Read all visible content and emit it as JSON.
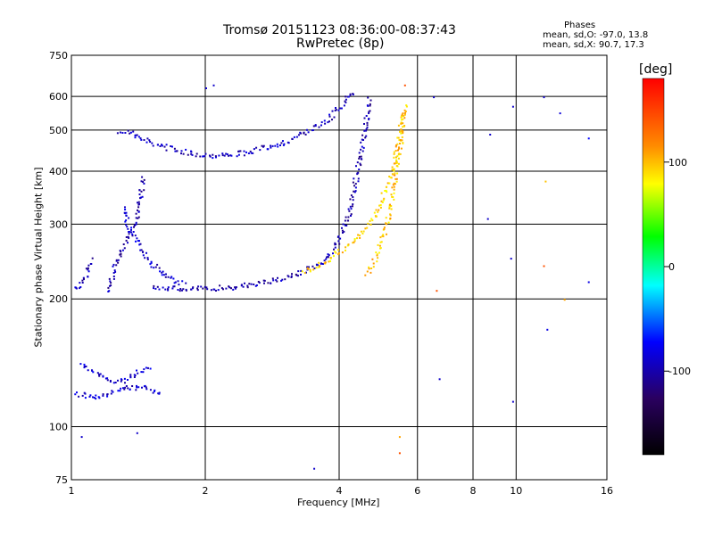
{
  "chart_data": {
    "type": "scatter",
    "title": "Tromsø 20151123 08:36:00-08:37:43",
    "subtitle": "RwPretec (8p)",
    "xlabel": "Frequency [MHz]",
    "ylabel": "Stationary phase Virtual Height [km]",
    "x_scale": "log",
    "y_scale": "log",
    "xlim": [
      1,
      16
    ],
    "ylim": [
      75,
      750
    ],
    "x_ticks": [
      1,
      2,
      4,
      6,
      8,
      10,
      16
    ],
    "y_ticks": [
      75,
      100,
      200,
      300,
      400,
      500,
      600,
      750
    ],
    "grid": true,
    "phase_info": {
      "heading": "Phases",
      "line_o": "mean, sd,O: -97.0, 13.8",
      "line_x": "mean, sd,X:  90.7, 17.3"
    },
    "colorbar": {
      "label": "[deg]",
      "range": [
        -180,
        180
      ],
      "ticks": [
        100,
        0,
        -100
      ],
      "colors": [
        "#ff0000",
        "#ffa500",
        "#ffff00",
        "#00ff00",
        "#00ffff",
        "#0000ff",
        "#2a0060",
        "#000000"
      ]
    },
    "traces": [
      {
        "phase": -105,
        "points": [
          [
            1.28,
            500
          ],
          [
            1.35,
            495
          ],
          [
            1.45,
            475
          ],
          [
            1.6,
            460
          ],
          [
            1.8,
            445
          ],
          [
            2.0,
            438
          ],
          [
            2.2,
            438
          ],
          [
            2.5,
            445
          ],
          [
            2.8,
            460
          ],
          [
            3.1,
            475
          ],
          [
            3.4,
            500
          ],
          [
            3.7,
            525
          ],
          [
            3.95,
            560
          ],
          [
            4.15,
            595
          ],
          [
            4.35,
            625
          ]
        ]
      },
      {
        "phase": -110,
        "points": [
          [
            1.52,
            215
          ],
          [
            1.7,
            212
          ],
          [
            1.9,
            212
          ],
          [
            2.1,
            213
          ],
          [
            2.4,
            215
          ],
          [
            2.7,
            220
          ],
          [
            3.0,
            225
          ],
          [
            3.3,
            232
          ],
          [
            3.6,
            243
          ],
          [
            3.85,
            260
          ],
          [
            4.05,
            285
          ],
          [
            4.2,
            320
          ],
          [
            4.32,
            370
          ],
          [
            4.42,
            420
          ],
          [
            4.52,
            480
          ],
          [
            4.6,
            540
          ],
          [
            4.68,
            600
          ]
        ]
      },
      {
        "phase": 105,
        "points": [
          [
            3.3,
            232
          ],
          [
            3.7,
            245
          ],
          [
            4.05,
            262
          ],
          [
            4.4,
            280
          ],
          [
            4.7,
            305
          ],
          [
            4.95,
            340
          ],
          [
            5.15,
            380
          ],
          [
            5.3,
            420
          ],
          [
            5.42,
            470
          ],
          [
            5.5,
            520
          ],
          [
            5.58,
            560
          ]
        ]
      },
      {
        "phase": 110,
        "points": [
          [
            4.6,
            230
          ],
          [
            4.85,
            255
          ],
          [
            5.05,
            290
          ],
          [
            5.2,
            330
          ],
          [
            5.3,
            380
          ],
          [
            5.4,
            430
          ],
          [
            5.5,
            480
          ],
          [
            5.55,
            540
          ],
          [
            5.6,
            580
          ]
        ]
      },
      {
        "phase": -100,
        "points": [
          [
            1.3,
            330
          ],
          [
            1.35,
            290
          ],
          [
            1.42,
            265
          ],
          [
            1.5,
            245
          ],
          [
            1.6,
            230
          ],
          [
            1.7,
            222
          ],
          [
            1.8,
            218
          ]
        ]
      },
      {
        "phase": -110,
        "points": [
          [
            1.2,
            210
          ],
          [
            1.25,
            240
          ],
          [
            1.3,
            265
          ],
          [
            1.35,
            290
          ],
          [
            1.4,
            310
          ],
          [
            1.42,
            350
          ],
          [
            1.45,
            390
          ]
        ]
      },
      {
        "phase": -100,
        "points": [
          [
            1.02,
            120
          ],
          [
            1.1,
            118
          ],
          [
            1.2,
            120
          ],
          [
            1.3,
            123
          ],
          [
            1.42,
            125
          ],
          [
            1.5,
            122
          ],
          [
            1.6,
            120
          ]
        ]
      },
      {
        "phase": -100,
        "points": [
          [
            1.05,
            140
          ],
          [
            1.12,
            135
          ],
          [
            1.2,
            130
          ],
          [
            1.3,
            128
          ],
          [
            1.4,
            135
          ],
          [
            1.5,
            140
          ]
        ]
      },
      {
        "phase": -110,
        "points": [
          [
            1.02,
            210
          ],
          [
            1.05,
            220
          ],
          [
            1.08,
            230
          ],
          [
            1.1,
            250
          ]
        ]
      }
    ],
    "isolated_points": [
      {
        "x": 1.05,
        "y": 95,
        "phase": -100
      },
      {
        "x": 1.4,
        "y": 97,
        "phase": -100
      },
      {
        "x": 2.0,
        "y": 630,
        "phase": -100
      },
      {
        "x": 2.08,
        "y": 640,
        "phase": -100
      },
      {
        "x": 3.5,
        "y": 80,
        "phase": -100
      },
      {
        "x": 5.6,
        "y": 640,
        "phase": 150
      },
      {
        "x": 6.5,
        "y": 600,
        "phase": -100
      },
      {
        "x": 6.6,
        "y": 210,
        "phase": 150
      },
      {
        "x": 6.7,
        "y": 130,
        "phase": -100
      },
      {
        "x": 8.7,
        "y": 490,
        "phase": -100
      },
      {
        "x": 8.6,
        "y": 310,
        "phase": -100
      },
      {
        "x": 9.7,
        "y": 250,
        "phase": -100
      },
      {
        "x": 9.8,
        "y": 570,
        "phase": -100
      },
      {
        "x": 9.8,
        "y": 115,
        "phase": -100
      },
      {
        "x": 11.5,
        "y": 600,
        "phase": -100
      },
      {
        "x": 11.6,
        "y": 380,
        "phase": 110
      },
      {
        "x": 11.5,
        "y": 240,
        "phase": 150
      },
      {
        "x": 11.7,
        "y": 170,
        "phase": -90
      },
      {
        "x": 12.5,
        "y": 550,
        "phase": -95
      },
      {
        "x": 12.8,
        "y": 200,
        "phase": 120
      },
      {
        "x": 14.5,
        "y": 480,
        "phase": -80
      },
      {
        "x": 14.5,
        "y": 220,
        "phase": -90
      },
      {
        "x": 5.45,
        "y": 95,
        "phase": 120
      },
      {
        "x": 5.45,
        "y": 87,
        "phase": 150
      }
    ]
  }
}
